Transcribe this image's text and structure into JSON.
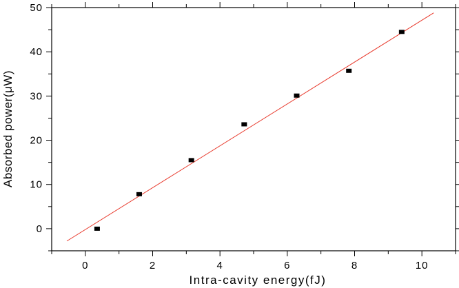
{
  "chart_data": {
    "type": "scatter",
    "title": "",
    "xlabel": "Intra-cavity energy(fJ)",
    "ylabel": "Absorbed power(μW)",
    "xlim": [
      -1,
      11
    ],
    "ylim": [
      -5,
      50
    ],
    "x_ticks": [
      0,
      2,
      4,
      6,
      8,
      10
    ],
    "y_ticks": [
      0,
      10,
      20,
      30,
      40,
      50
    ],
    "x_tick_labels": [
      "0",
      "2",
      "4",
      "6",
      "8",
      "10"
    ],
    "y_tick_labels": [
      "0",
      "10",
      "20",
      "30",
      "40",
      "50"
    ],
    "grid": false,
    "series": [
      {
        "type": "scatter",
        "marker": "square",
        "color": "#000000",
        "x": [
          0.35,
          1.6,
          3.15,
          4.72,
          6.28,
          7.83,
          9.4
        ],
        "y": [
          0.0,
          7.8,
          15.5,
          23.6,
          30.1,
          35.7,
          44.5
        ]
      },
      {
        "type": "line",
        "color": "#e8392c",
        "x": [
          -0.55,
          10.35
        ],
        "y": [
          -2.8,
          48.8
        ]
      }
    ]
  }
}
